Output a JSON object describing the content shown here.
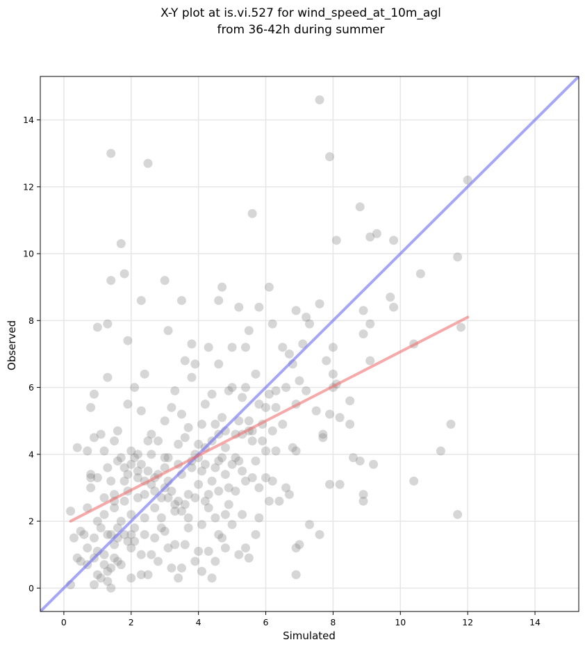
{
  "chart_data": {
    "type": "scatter",
    "title_lines": [
      "X-Y plot at is.vi.527 for wind_speed_at_10m_agl",
      "from 36-42h during summer"
    ],
    "xlabel": "Simulated",
    "ylabel": "Observed",
    "xlim": [
      -0.7,
      15.3
    ],
    "ylim": [
      -0.7,
      15.3
    ],
    "xticks": [
      0,
      2,
      4,
      6,
      8,
      10,
      12,
      14
    ],
    "yticks": [
      0,
      2,
      4,
      6,
      8,
      10,
      12,
      14
    ],
    "grid": true,
    "colors": {
      "points": "#7f7f7f",
      "identity_line": "#6b6bf0",
      "regression_line": "#f07070"
    },
    "identity_line": {
      "x": [
        -0.7,
        15.3
      ],
      "y": [
        -0.7,
        15.3
      ]
    },
    "regression_line": {
      "x": [
        0.2,
        12.0
      ],
      "y": [
        2.0,
        8.1
      ]
    },
    "points": [
      [
        0.2,
        0.1
      ],
      [
        0.2,
        2.3
      ],
      [
        0.3,
        1.5
      ],
      [
        0.4,
        0.9
      ],
      [
        0.5,
        0.8
      ],
      [
        0.5,
        1.7
      ],
      [
        0.6,
        1.6
      ],
      [
        0.7,
        0.7
      ],
      [
        0.7,
        1.2
      ],
      [
        0.7,
        2.4
      ],
      [
        0.8,
        3.0
      ],
      [
        0.8,
        3.4
      ],
      [
        0.9,
        1.5
      ],
      [
        0.9,
        0.1
      ],
      [
        1.0,
        0.4
      ],
      [
        1.0,
        1.1
      ],
      [
        1.0,
        2.0
      ],
      [
        1.1,
        0.3
      ],
      [
        1.1,
        1.8
      ],
      [
        1.2,
        0.7
      ],
      [
        1.2,
        2.7
      ],
      [
        1.3,
        0.5
      ],
      [
        1.3,
        0.2
      ],
      [
        1.3,
        1.6
      ],
      [
        1.4,
        0.6
      ],
      [
        1.4,
        0.0
      ],
      [
        1.4,
        1.6
      ],
      [
        1.5,
        0.9
      ],
      [
        1.5,
        2.8
      ],
      [
        1.6,
        0.8
      ],
      [
        1.6,
        1.8
      ],
      [
        1.7,
        0.7
      ],
      [
        1.7,
        2.0
      ],
      [
        1.8,
        1.6
      ],
      [
        1.8,
        2.6
      ],
      [
        1.9,
        1.4
      ],
      [
        1.9,
        2.9
      ],
      [
        2.0,
        0.3
      ],
      [
        2.0,
        1.2
      ],
      [
        2.0,
        2.2
      ],
      [
        2.1,
        1.8
      ],
      [
        2.2,
        2.7
      ],
      [
        2.3,
        0.4
      ],
      [
        2.3,
        1.0
      ],
      [
        2.4,
        2.1
      ],
      [
        2.5,
        0.4
      ],
      [
        2.6,
        1.0
      ],
      [
        2.7,
        1.5
      ],
      [
        2.8,
        0.8
      ],
      [
        2.9,
        1.8
      ],
      [
        3.0,
        1.7
      ],
      [
        3.1,
        1.2
      ],
      [
        3.2,
        0.6
      ],
      [
        3.3,
        1.3
      ],
      [
        3.4,
        0.3
      ],
      [
        3.5,
        0.6
      ],
      [
        3.6,
        1.3
      ],
      [
        3.7,
        1.8
      ],
      [
        3.9,
        0.8
      ],
      [
        4.0,
        1.1
      ],
      [
        4.1,
        0.5
      ],
      [
        4.3,
        1.1
      ],
      [
        4.4,
        0.3
      ],
      [
        4.5,
        0.8
      ],
      [
        4.6,
        1.6
      ],
      [
        4.7,
        1.5
      ],
      [
        4.8,
        1.2
      ],
      [
        5.0,
        1.9
      ],
      [
        5.2,
        1.0
      ],
      [
        5.4,
        1.2
      ],
      [
        5.5,
        0.9
      ],
      [
        5.7,
        1.6
      ],
      [
        0.4,
        4.2
      ],
      [
        0.7,
        4.1
      ],
      [
        0.8,
        3.3
      ],
      [
        0.9,
        4.5
      ],
      [
        1.0,
        3.3
      ],
      [
        1.1,
        4.6
      ],
      [
        1.2,
        4.1
      ],
      [
        1.3,
        3.6
      ],
      [
        1.4,
        3.2
      ],
      [
        1.5,
        2.6
      ],
      [
        1.5,
        4.4
      ],
      [
        1.6,
        3.8
      ],
      [
        1.7,
        3.9
      ],
      [
        1.8,
        3.6
      ],
      [
        1.9,
        3.4
      ],
      [
        2.0,
        3.7
      ],
      [
        2.1,
        3.9
      ],
      [
        2.2,
        3.3
      ],
      [
        2.3,
        3.7
      ],
      [
        2.4,
        2.8
      ],
      [
        2.5,
        3.5
      ],
      [
        2.6,
        3.1
      ],
      [
        2.7,
        2.9
      ],
      [
        2.8,
        3.4
      ],
      [
        2.9,
        2.7
      ],
      [
        3.0,
        3.9
      ],
      [
        3.1,
        3.2
      ],
      [
        3.2,
        2.9
      ],
      [
        3.3,
        2.5
      ],
      [
        3.4,
        2.6
      ],
      [
        3.5,
        2.3
      ],
      [
        3.6,
        2.5
      ],
      [
        3.7,
        2.8
      ],
      [
        3.8,
        3.6
      ],
      [
        3.9,
        2.7
      ],
      [
        4.0,
        3.1
      ],
      [
        4.1,
        3.5
      ],
      [
        4.2,
        2.6
      ],
      [
        4.3,
        2.4
      ],
      [
        4.4,
        3.2
      ],
      [
        4.5,
        3.6
      ],
      [
        4.6,
        2.9
      ],
      [
        4.7,
        3.9
      ],
      [
        4.8,
        3.4
      ],
      [
        4.9,
        3.0
      ],
      [
        5.0,
        3.7
      ],
      [
        5.1,
        2.9
      ],
      [
        5.2,
        3.8
      ],
      [
        5.3,
        3.5
      ],
      [
        5.4,
        3.2
      ],
      [
        5.5,
        4.7
      ],
      [
        5.6,
        3.3
      ],
      [
        5.8,
        3.0
      ],
      [
        6.0,
        4.1
      ],
      [
        6.1,
        2.6
      ],
      [
        6.2,
        3.2
      ],
      [
        6.4,
        2.6
      ],
      [
        6.6,
        3.0
      ],
      [
        6.7,
        2.8
      ],
      [
        0.8,
        5.4
      ],
      [
        0.9,
        5.8
      ],
      [
        1.3,
        6.3
      ],
      [
        1.6,
        4.7
      ],
      [
        1.9,
        5.5
      ],
      [
        2.0,
        4.1
      ],
      [
        2.1,
        6.0
      ],
      [
        2.3,
        5.3
      ],
      [
        2.4,
        6.4
      ],
      [
        2.5,
        4.4
      ],
      [
        2.6,
        4.6
      ],
      [
        2.8,
        4.4
      ],
      [
        3.0,
        5.0
      ],
      [
        3.2,
        5.4
      ],
      [
        3.3,
        5.9
      ],
      [
        3.5,
        5.2
      ],
      [
        3.6,
        6.8
      ],
      [
        3.7,
        4.8
      ],
      [
        3.8,
        6.3
      ],
      [
        3.9,
        6.7
      ],
      [
        4.0,
        4.3
      ],
      [
        4.1,
        4.9
      ],
      [
        4.2,
        5.5
      ],
      [
        4.4,
        5.8
      ],
      [
        4.5,
        4.9
      ],
      [
        4.6,
        6.7
      ],
      [
        4.7,
        5.1
      ],
      [
        4.8,
        4.7
      ],
      [
        4.9,
        5.9
      ],
      [
        5.0,
        6.0
      ],
      [
        5.1,
        4.6
      ],
      [
        5.2,
        5.0
      ],
      [
        5.3,
        5.7
      ],
      [
        5.4,
        6.0
      ],
      [
        5.5,
        5.0
      ],
      [
        5.6,
        4.4
      ],
      [
        5.7,
        6.4
      ],
      [
        5.8,
        5.5
      ],
      [
        5.9,
        4.9
      ],
      [
        6.0,
        5.4
      ],
      [
        6.1,
        5.8
      ],
      [
        6.3,
        5.9
      ],
      [
        6.5,
        4.9
      ],
      [
        6.6,
        6.0
      ],
      [
        6.8,
        6.7
      ],
      [
        6.9,
        5.5
      ],
      [
        7.0,
        6.2
      ],
      [
        7.2,
        5.9
      ],
      [
        7.5,
        5.3
      ],
      [
        7.7,
        4.6
      ],
      [
        7.9,
        5.2
      ],
      [
        8.0,
        6.4
      ],
      [
        8.2,
        5.1
      ],
      [
        8.5,
        4.9
      ],
      [
        8.5,
        5.6
      ],
      [
        1.0,
        7.8
      ],
      [
        1.3,
        7.9
      ],
      [
        1.9,
        7.4
      ],
      [
        2.3,
        8.6
      ],
      [
        3.1,
        7.7
      ],
      [
        3.5,
        8.6
      ],
      [
        3.8,
        7.3
      ],
      [
        4.3,
        7.2
      ],
      [
        4.6,
        8.6
      ],
      [
        4.7,
        9.0
      ],
      [
        5.0,
        7.2
      ],
      [
        5.2,
        8.4
      ],
      [
        5.4,
        7.2
      ],
      [
        5.5,
        7.7
      ],
      [
        5.8,
        8.4
      ],
      [
        6.1,
        9.0
      ],
      [
        6.2,
        7.9
      ],
      [
        6.5,
        7.2
      ],
      [
        6.7,
        7.0
      ],
      [
        6.9,
        8.3
      ],
      [
        7.1,
        7.3
      ],
      [
        7.2,
        8.1
      ],
      [
        7.3,
        7.9
      ],
      [
        7.6,
        8.5
      ],
      [
        7.8,
        6.8
      ],
      [
        8.0,
        7.2
      ],
      [
        8.1,
        6.1
      ],
      [
        8.9,
        7.6
      ],
      [
        8.9,
        8.3
      ],
      [
        9.1,
        6.8
      ],
      [
        9.1,
        7.9
      ],
      [
        9.7,
        8.7
      ],
      [
        9.8,
        8.4
      ],
      [
        10.4,
        7.3
      ],
      [
        11.8,
        7.8
      ],
      [
        1.4,
        9.2
      ],
      [
        1.7,
        10.3
      ],
      [
        1.8,
        9.4
      ],
      [
        3.0,
        9.2
      ],
      [
        5.6,
        11.2
      ],
      [
        8.1,
        10.4
      ],
      [
        8.8,
        11.4
      ],
      [
        9.1,
        10.5
      ],
      [
        9.3,
        10.6
      ],
      [
        9.8,
        10.4
      ],
      [
        10.6,
        9.4
      ],
      [
        11.7,
        9.9
      ],
      [
        12.0,
        12.2
      ],
      [
        1.4,
        13.0
      ],
      [
        2.5,
        12.7
      ],
      [
        7.6,
        14.6
      ],
      [
        7.9,
        12.9
      ],
      [
        7.6,
        1.6
      ],
      [
        6.9,
        0.4
      ],
      [
        6.9,
        1.2
      ],
      [
        7.0,
        1.3
      ],
      [
        7.3,
        1.9
      ],
      [
        7.9,
        3.1
      ],
      [
        8.2,
        3.1
      ],
      [
        8.6,
        3.9
      ],
      [
        8.8,
        3.8
      ],
      [
        8.9,
        2.8
      ],
      [
        8.9,
        2.6
      ],
      [
        9.2,
        3.7
      ],
      [
        10.4,
        3.2
      ],
      [
        11.2,
        4.1
      ],
      [
        11.5,
        4.9
      ],
      [
        11.7,
        2.2
      ],
      [
        6.3,
        4.1
      ],
      [
        6.8,
        4.2
      ],
      [
        6.9,
        4.1
      ],
      [
        7.7,
        4.5
      ],
      [
        8.0,
        6.0
      ],
      [
        2.2,
        4.0
      ],
      [
        2.6,
        4.0
      ],
      [
        3.0,
        3.6
      ],
      [
        3.4,
        4.3
      ],
      [
        3.6,
        4.5
      ],
      [
        3.9,
        4.0
      ],
      [
        4.2,
        4.2
      ],
      [
        4.4,
        4.4
      ],
      [
        4.8,
        4.2
      ],
      [
        5.3,
        4.6
      ],
      [
        5.6,
        4.7
      ],
      [
        5.9,
        4.4
      ],
      [
        6.2,
        4.7
      ],
      [
        6.3,
        5.4
      ],
      [
        6.0,
        3.3
      ],
      [
        5.7,
        3.8
      ],
      [
        4.6,
        4.6
      ],
      [
        4.0,
        3.9
      ],
      [
        3.5,
        3.4
      ],
      [
        3.0,
        3.0
      ],
      [
        2.7,
        2.4
      ],
      [
        2.4,
        1.6
      ],
      [
        2.0,
        1.6
      ],
      [
        1.6,
        1.5
      ],
      [
        1.2,
        1.0
      ],
      [
        0.9,
        0.9
      ],
      [
        1.5,
        1.3
      ],
      [
        2.1,
        1.4
      ],
      [
        2.9,
        2.1
      ],
      [
        3.3,
        2.3
      ],
      [
        3.7,
        2.1
      ],
      [
        4.1,
        1.9
      ],
      [
        4.5,
        2.1
      ],
      [
        4.9,
        2.5
      ],
      [
        5.3,
        2.2
      ],
      [
        5.8,
        2.1
      ],
      [
        2.2,
        3.5
      ],
      [
        2.4,
        3.2
      ],
      [
        2.7,
        3.3
      ],
      [
        3.1,
        3.9
      ],
      [
        3.4,
        3.7
      ],
      [
        3.8,
        3.8
      ],
      [
        4.2,
        3.7
      ],
      [
        4.6,
        3.8
      ],
      [
        5.1,
        3.9
      ],
      [
        1.8,
        3.2
      ],
      [
        1.5,
        2.4
      ],
      [
        1.2,
        2.2
      ],
      [
        3.1,
        2.7
      ],
      [
        4.3,
        2.8
      ],
      [
        4.8,
        2.2
      ]
    ]
  }
}
